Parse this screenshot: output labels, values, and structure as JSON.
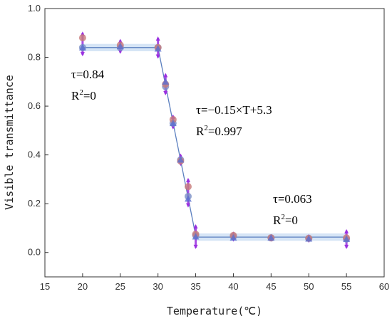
{
  "chart_data": {
    "type": "scatter",
    "xlabel": "Temperature(℃)",
    "ylabel": "Visible transmittance",
    "xlim": [
      15,
      60
    ],
    "ylim": [
      -0.1,
      1.0
    ],
    "x_ticks": [
      "15",
      "20",
      "25",
      "30",
      "35",
      "40",
      "45",
      "50",
      "55",
      "60"
    ],
    "y_ticks": [
      "0.0",
      "0.2",
      "0.4",
      "0.6",
      "0.8",
      "1.0"
    ],
    "grid": false,
    "series": [
      {
        "color": "#7b8fc6",
        "points": [
          {
            "x": 20,
            "y": 0.84
          },
          {
            "x": 25,
            "y": 0.84
          },
          {
            "x": 30,
            "y": 0.84
          },
          {
            "x": 31,
            "y": 0.68
          },
          {
            "x": 32,
            "y": 0.53
          },
          {
            "x": 33,
            "y": 0.38
          },
          {
            "x": 34,
            "y": 0.23
          },
          {
            "x": 35,
            "y": 0.07
          },
          {
            "x": 40,
            "y": 0.065
          },
          {
            "x": 45,
            "y": 0.06
          },
          {
            "x": 50,
            "y": 0.058
          },
          {
            "x": 55,
            "y": 0.055
          }
        ]
      },
      {
        "color": "#c87a7a",
        "points": [
          {
            "x": 20,
            "y": 0.88
          },
          {
            "x": 25,
            "y": 0.85
          },
          {
            "x": 30,
            "y": 0.84
          },
          {
            "x": 31,
            "y": 0.69
          },
          {
            "x": 32,
            "y": 0.545
          },
          {
            "x": 33,
            "y": 0.375
          },
          {
            "x": 34,
            "y": 0.27
          },
          {
            "x": 35,
            "y": 0.075
          },
          {
            "x": 40,
            "y": 0.07
          },
          {
            "x": 45,
            "y": 0.06
          },
          {
            "x": 50,
            "y": 0.058
          },
          {
            "x": 55,
            "y": 0.06
          }
        ]
      },
      {
        "color": "#5a6fd0",
        "points": [
          {
            "x": 20,
            "y": 0.84
          },
          {
            "x": 25,
            "y": 0.845
          },
          {
            "x": 30,
            "y": 0.835
          },
          {
            "x": 31,
            "y": 0.7
          },
          {
            "x": 32,
            "y": 0.53
          },
          {
            "x": 33,
            "y": 0.38
          },
          {
            "x": 34,
            "y": 0.22
          },
          {
            "x": 35,
            "y": 0.065
          },
          {
            "x": 40,
            "y": 0.06
          },
          {
            "x": 45,
            "y": 0.06
          },
          {
            "x": 50,
            "y": 0.056
          },
          {
            "x": 55,
            "y": 0.055
          }
        ]
      }
    ],
    "error_bars": [
      {
        "x": 20,
        "low": 0.81,
        "high": 0.9
      },
      {
        "x": 25,
        "low": 0.82,
        "high": 0.87
      },
      {
        "x": 30,
        "low": 0.8,
        "high": 0.88
      },
      {
        "x": 31,
        "low": 0.65,
        "high": 0.73
      },
      {
        "x": 32,
        "low": 0.51,
        "high": 0.56
      },
      {
        "x": 33,
        "low": 0.36,
        "high": 0.4
      },
      {
        "x": 34,
        "low": 0.19,
        "high": 0.3
      },
      {
        "x": 35,
        "low": 0.02,
        "high": 0.11
      },
      {
        "x": 40,
        "low": 0.05,
        "high": 0.08
      },
      {
        "x": 45,
        "low": 0.05,
        "high": 0.07
      },
      {
        "x": 50,
        "low": 0.045,
        "high": 0.07
      },
      {
        "x": 55,
        "low": 0.02,
        "high": 0.09
      }
    ],
    "fits": [
      {
        "x_range": [
          20,
          30
        ],
        "y_start": 0.84,
        "y_end": 0.84,
        "band": 0.03,
        "label_lines": [
          "τ=0.84",
          "R2=0"
        ]
      },
      {
        "x_range": [
          30,
          35
        ],
        "y_start": 0.84,
        "y_end": 0.07,
        "band": 0.0,
        "label_lines": [
          "τ=−0.15×T+5.3",
          "R2=0.997"
        ]
      },
      {
        "x_range": [
          35,
          55
        ],
        "y_start": 0.063,
        "y_end": 0.063,
        "band": 0.03,
        "label_lines": [
          "τ=0.063",
          "R2=0"
        ]
      }
    ],
    "colors": {
      "fit_line": "#5b7fbf",
      "band": "#cfe0f5",
      "error_bar": "#9b30e0",
      "axis": "#333333"
    }
  }
}
